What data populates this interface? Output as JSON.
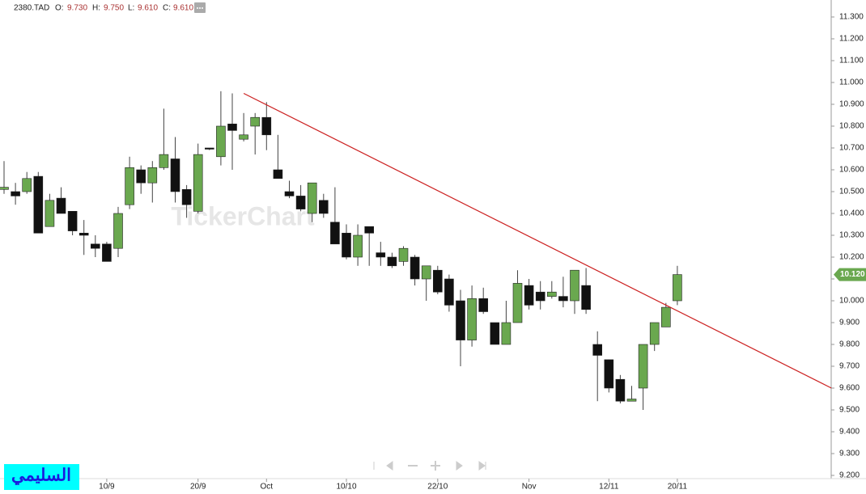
{
  "chart_data": {
    "type": "candlestick",
    "header": {
      "symbol": "2380.TAD",
      "open_label": "O:",
      "open": "9.730",
      "high_label": "H:",
      "high": "9.750",
      "low_label": "L:",
      "low": "9.610",
      "close_label": "C:",
      "close": "9.610"
    },
    "watermark": "TickerChart",
    "footer_label": "السليمي",
    "categories": [
      null,
      null,
      null,
      null,
      null,
      null,
      null,
      null,
      null,
      "10/9",
      null,
      null,
      null,
      null,
      null,
      null,
      null,
      "20/9",
      null,
      null,
      null,
      null,
      null,
      "Oct",
      null,
      null,
      null,
      null,
      null,
      null,
      "10/10",
      null,
      null,
      null,
      null,
      null,
      null,
      null,
      "22/10",
      null,
      null,
      null,
      null,
      null,
      null,
      null,
      "Nov",
      null,
      null,
      null,
      null,
      null,
      null,
      "12/11",
      null,
      null,
      null,
      null,
      null,
      "20/11"
    ],
    "open": [
      10.51,
      10.5,
      10.5,
      10.57,
      10.34,
      10.47,
      10.41,
      10.31,
      10.26,
      10.26,
      10.24,
      10.44,
      10.6,
      10.54,
      10.61,
      10.65,
      10.51,
      10.41,
      10.7,
      10.66,
      10.81,
      10.74,
      10.8,
      10.84,
      10.6,
      10.5,
      10.48,
      10.4,
      10.46,
      10.36,
      10.31,
      10.2,
      10.34,
      10.22,
      10.2,
      10.18,
      10.2,
      10.1,
      10.14,
      10.1,
      10.0,
      9.82,
      10.01,
      9.9,
      9.8,
      9.9,
      10.07,
      10.04,
      10.02,
      10.02,
      10.0,
      10.07,
      9.8,
      9.73,
      9.64,
      9.54,
      9.6,
      9.8,
      9.88,
      10.0
    ],
    "high": [
      10.64,
      10.54,
      10.59,
      10.59,
      10.49,
      10.52,
      10.41,
      10.37,
      10.3,
      10.27,
      10.43,
      10.66,
      10.62,
      10.64,
      10.88,
      10.75,
      10.53,
      10.72,
      10.7,
      10.96,
      10.95,
      10.86,
      10.86,
      10.91,
      10.76,
      10.55,
      10.53,
      10.54,
      10.49,
      10.52,
      10.35,
      10.35,
      10.34,
      10.27,
      10.22,
      10.25,
      10.21,
      10.16,
      10.16,
      10.12,
      10.05,
      10.07,
      10.06,
      9.9,
      10.0,
      10.14,
      10.1,
      10.09,
      10.09,
      10.11,
      10.14,
      10.15,
      9.86,
      9.73,
      9.66,
      9.61,
      9.8,
      9.9,
      9.99,
      10.16
    ],
    "low": [
      10.49,
      10.44,
      10.49,
      10.31,
      10.34,
      10.4,
      10.3,
      10.21,
      10.2,
      10.18,
      10.2,
      10.42,
      10.49,
      10.45,
      10.6,
      10.45,
      10.38,
      10.4,
      10.69,
      10.62,
      10.6,
      10.73,
      10.67,
      10.69,
      10.56,
      10.47,
      10.41,
      10.36,
      10.38,
      10.26,
      10.19,
      10.16,
      10.16,
      10.16,
      10.15,
      10.16,
      10.07,
      10.0,
      10.03,
      9.95,
      9.7,
      9.79,
      9.94,
      9.8,
      9.8,
      9.9,
      9.96,
      9.96,
      10.01,
      9.97,
      9.94,
      9.94,
      9.54,
      9.58,
      9.53,
      9.54,
      9.5,
      9.77,
      9.88,
      9.98
    ],
    "close": [
      10.52,
      10.48,
      10.56,
      10.31,
      10.46,
      10.4,
      10.32,
      10.3,
      10.24,
      10.18,
      10.4,
      10.61,
      10.54,
      10.61,
      10.67,
      10.5,
      10.44,
      10.67,
      10.7,
      10.8,
      10.78,
      10.76,
      10.84,
      10.76,
      10.56,
      10.48,
      10.42,
      10.54,
      10.4,
      10.26,
      10.2,
      10.3,
      10.31,
      10.2,
      10.16,
      10.24,
      10.1,
      10.16,
      10.04,
      9.98,
      9.82,
      10.01,
      9.95,
      9.8,
      9.9,
      10.08,
      9.98,
      10.0,
      10.04,
      10.0,
      10.14,
      9.96,
      9.75,
      9.6,
      9.54,
      9.55,
      9.8,
      9.9,
      9.97,
      10.12
    ],
    "up_color": "#6aa84f",
    "down_color": "#111111",
    "ylim": [
      9.2,
      11.3
    ],
    "yticks": [
      {
        "value": 9.2,
        "label": "9.200"
      },
      {
        "value": 9.3,
        "label": "9.300"
      },
      {
        "value": 9.4,
        "label": "9.400"
      },
      {
        "value": 9.5,
        "label": "9.500"
      },
      {
        "value": 9.6,
        "label": "9.600"
      },
      {
        "value": 9.7,
        "label": "9.700"
      },
      {
        "value": 9.8,
        "label": "9.800"
      },
      {
        "value": 9.9,
        "label": "9.900"
      },
      {
        "value": 10.0,
        "label": "10.000"
      },
      {
        "value": 10.1,
        "label": "10.100"
      },
      {
        "value": 10.2,
        "label": "10.200"
      },
      {
        "value": 10.3,
        "label": "10.300"
      },
      {
        "value": 10.4,
        "label": "10.400"
      },
      {
        "value": 10.5,
        "label": "10.500"
      },
      {
        "value": 10.6,
        "label": "10.600"
      },
      {
        "value": 10.7,
        "label": "10.700"
      },
      {
        "value": 10.8,
        "label": "10.800"
      },
      {
        "value": 10.9,
        "label": "10.900"
      },
      {
        "value": 11.0,
        "label": "11.000"
      },
      {
        "value": 11.1,
        "label": "11.100"
      },
      {
        "value": 11.2,
        "label": "11.200"
      },
      {
        "value": 11.3,
        "label": "11.300"
      }
    ],
    "last_price": {
      "value": 10.12,
      "label": "10.120",
      "color": "#6aa84f"
    },
    "trendline": {
      "x": [
        21,
        72.5
      ],
      "y": [
        10.95,
        9.6
      ],
      "color": "#cc2222"
    },
    "grid": false
  }
}
